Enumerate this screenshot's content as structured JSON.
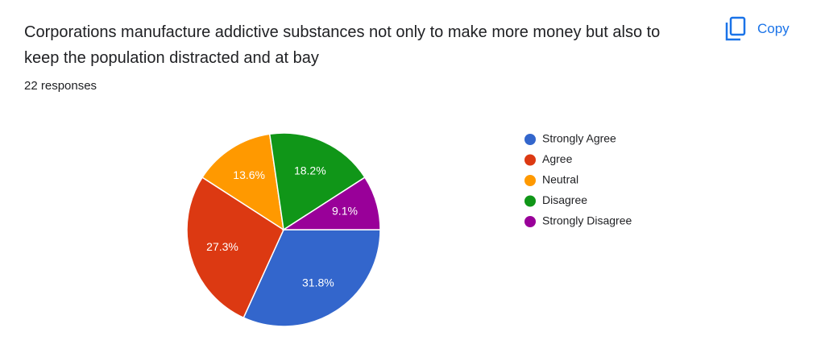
{
  "copy_button": "Copy",
  "chart_data": {
    "type": "pie",
    "title": "Corporations manufacture addictive substances not only to make more money but also to keep the population distracted and at bay",
    "subtitle": "22 responses",
    "categories": [
      "Strongly Agree",
      "Agree",
      "Neutral",
      "Disagree",
      "Strongly Disagree"
    ],
    "values": [
      31.8,
      27.3,
      13.6,
      18.2,
      9.1
    ],
    "value_labels": [
      "31.8%",
      "27.3%",
      "13.6%",
      "18.2%",
      "9.1%"
    ],
    "colors": [
      "#3366cc",
      "#dc3912",
      "#ff9900",
      "#109618",
      "#990099"
    ],
    "legend": "right"
  }
}
